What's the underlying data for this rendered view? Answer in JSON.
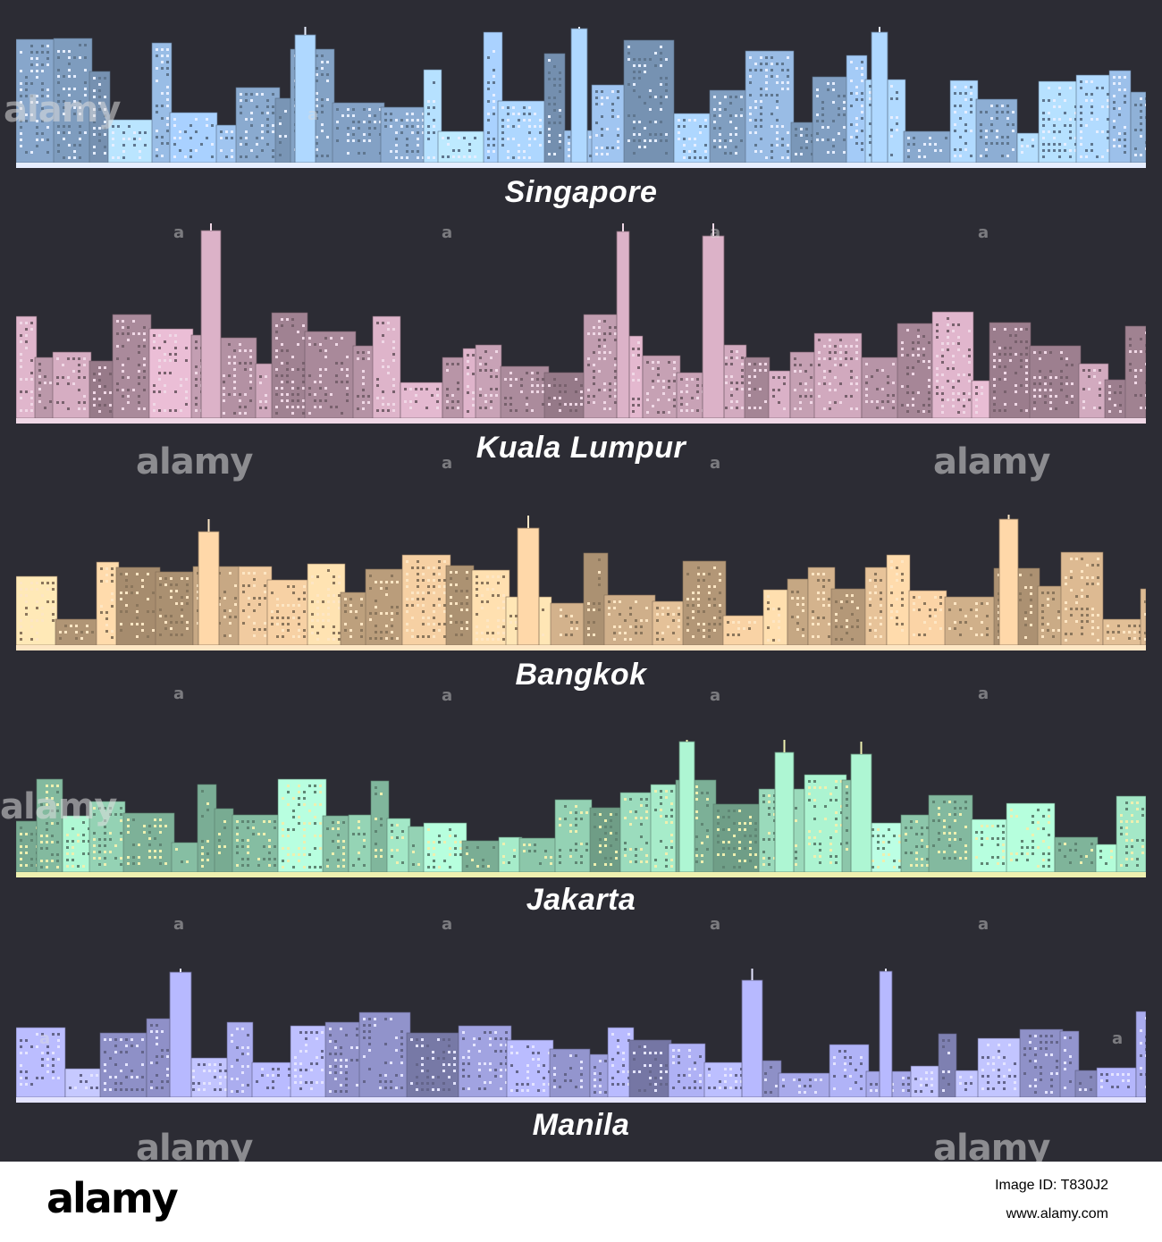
{
  "cities": [
    {
      "name": "Singapore",
      "tone": "#9fc4ef",
      "accent": "#e6eeff"
    },
    {
      "name": "Kuala Lumpur",
      "tone": "#c8a2b6",
      "accent": "#f0d8e6"
    },
    {
      "name": "Bangkok",
      "tone": "#e8c49a",
      "accent": "#fde6c4"
    },
    {
      "name": "Jakarta",
      "tone": "#9ee0c0",
      "accent": "#eef0b0"
    },
    {
      "name": "Manila",
      "tone": "#a6a8e8",
      "accent": "#e4e4ff"
    }
  ],
  "watermark": {
    "text": "alamy",
    "mark": "a"
  },
  "footer": {
    "logo": "alamy",
    "image_id": "Image ID: T830J2",
    "url": "www.alamy.com"
  }
}
